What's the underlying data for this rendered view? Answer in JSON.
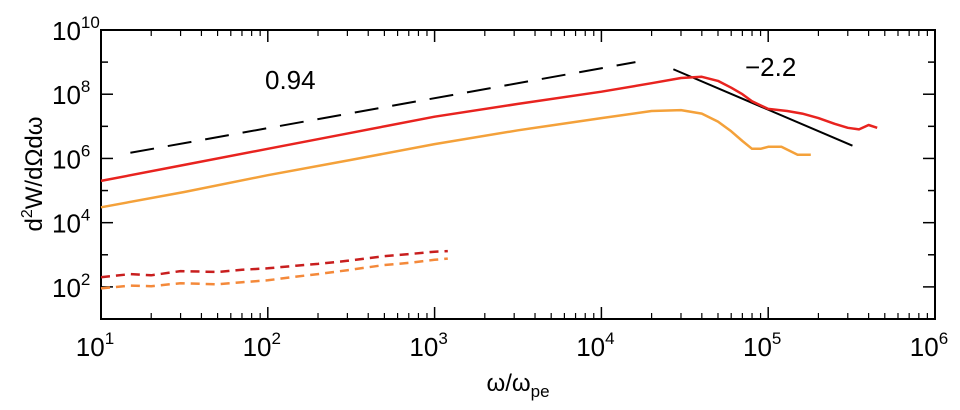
{
  "chart_data": {
    "type": "line",
    "xlabel": {
      "main": "ω/ω",
      "sub": "pe"
    },
    "ylabel": {
      "text": "d",
      "sup": "2",
      "rest": "W/dΩdω"
    },
    "xscale": "log",
    "yscale": "log",
    "xlim": [
      10,
      1000000
    ],
    "ylim": [
      10,
      10000000000
    ],
    "grid": false,
    "x_ticks": [
      {
        "base": "10",
        "exp": "1"
      },
      {
        "base": "10",
        "exp": "2"
      },
      {
        "base": "10",
        "exp": "3"
      },
      {
        "base": "10",
        "exp": "4"
      },
      {
        "base": "10",
        "exp": "5"
      },
      {
        "base": "10",
        "exp": "6"
      }
    ],
    "y_ticks": [
      {
        "base": "10",
        "exp": "2"
      },
      {
        "base": "10",
        "exp": "4"
      },
      {
        "base": "10",
        "exp": "6"
      },
      {
        "base": "10",
        "exp": "8"
      },
      {
        "base": "10",
        "exp": "10"
      }
    ],
    "annotations": [
      {
        "text": "0.94",
        "color": "#000000"
      },
      {
        "text": "−2.2",
        "color": "#000000"
      }
    ],
    "series": [
      {
        "color": "#e8231f",
        "style": "solid",
        "x": [
          10,
          31.6,
          100,
          316,
          1000,
          3162,
          10000,
          20000,
          30000,
          40000,
          50000,
          60000,
          70000,
          80000,
          100000,
          130000,
          160000,
          200000,
          250000,
          300000,
          350000,
          400000,
          450000
        ],
        "y": [
          200000,
          630000,
          2000000,
          6300000,
          20000000,
          50000000,
          120000000,
          220000000,
          320000000,
          350000000,
          260000000,
          160000000,
          100000000,
          60000000,
          35000000,
          30000000,
          25000000,
          18000000,
          12000000,
          9000000,
          8000000,
          11000000,
          9000000
        ]
      },
      {
        "color": "#f4a13a",
        "style": "solid",
        "x": [
          10,
          31.6,
          100,
          316,
          1000,
          3162,
          10000,
          20000,
          30000,
          40000,
          50000,
          60000,
          70000,
          80000,
          90000,
          100000,
          120000,
          150000,
          180000
        ],
        "y": [
          30000,
          90000,
          300000,
          900000,
          2800000,
          7500000,
          18000000,
          30000000,
          32000000,
          25000000,
          14000000,
          7000000,
          3500000,
          2000000,
          2000000,
          2300000,
          2300000,
          1300000,
          1300000
        ]
      },
      {
        "color": "#c81e1e",
        "style": "dashed",
        "x": [
          10,
          15,
          20,
          30,
          50,
          70,
          100,
          150,
          200,
          300,
          500,
          700,
          1000,
          1200
        ],
        "y": [
          200,
          250,
          230,
          310,
          290,
          340,
          380,
          460,
          520,
          650,
          900,
          1050,
          1250,
          1300
        ]
      },
      {
        "color": "#f4893a",
        "style": "dashed",
        "x": [
          10,
          15,
          20,
          30,
          50,
          70,
          100,
          150,
          200,
          300,
          500,
          700,
          1000,
          1200
        ],
        "y": [
          90,
          110,
          105,
          130,
          120,
          140,
          160,
          210,
          250,
          330,
          480,
          560,
          700,
          760
        ]
      }
    ],
    "fit_lines": [
      {
        "slope": "0.94",
        "style": "dashed",
        "color": "#000000",
        "x": [
          15,
          16000
        ],
        "y": [
          1500000,
          1000000000
        ]
      },
      {
        "slope": "−2.2",
        "style": "solid",
        "color": "#000000",
        "x": [
          27000,
          320000
        ],
        "y": [
          600000000,
          2500000
        ]
      }
    ]
  }
}
